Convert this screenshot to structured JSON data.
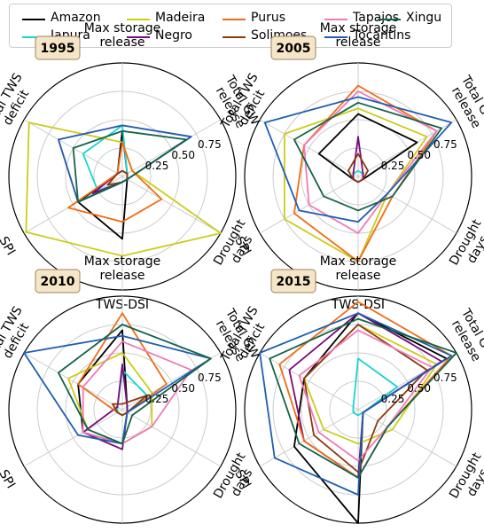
{
  "legend": {
    "entries": [
      {
        "name": "Amazon",
        "color": "#000000"
      },
      {
        "name": "Japura",
        "color": "#17d4d4"
      },
      {
        "name": "Madeira",
        "color": "#cccc1a"
      },
      {
        "name": "Negro",
        "color": "#7a0a7a"
      },
      {
        "name": "Purus",
        "color": "#f06c14"
      },
      {
        "name": "Solimoes",
        "color": "#8b3a0f"
      },
      {
        "name": "Tapajos",
        "color": "#f07ab8"
      },
      {
        "name": "Tocantins",
        "color": "#1f5fb0"
      },
      {
        "name": "Xingu",
        "color": "#14634a"
      }
    ]
  },
  "chart_data": [
    {
      "type": "radar",
      "title": "1995",
      "axes": [
        "Max storage\nrelease",
        "Total GW\nrelease",
        "Drought\ndays",
        "TWS-DSI",
        "SPI",
        "Total TWS\ndeficit"
      ],
      "rticks": [
        0.25,
        0.5,
        0.75
      ],
      "rtick_labels": [
        "0.25",
        "0.50",
        "0.75"
      ],
      "rlim": [
        0,
        1
      ],
      "grid": true,
      "series": [
        {
          "name": "Amazon",
          "values": [
            0.4,
            0.05,
            0.05,
            0.55,
            0.45,
            0.05
          ]
        },
        {
          "name": "Japura",
          "values": [
            0.45,
            0.05,
            0.05,
            0.05,
            0.25,
            0.4
          ]
        },
        {
          "name": "Madeira",
          "values": [
            0.3,
            0.1,
            1.0,
            0.7,
            0.98,
            0.95
          ]
        },
        {
          "name": "Negro",
          "values": [
            0.05,
            0.05,
            0.05,
            0.05,
            0.3,
            0.05
          ]
        },
        {
          "name": "Purus",
          "values": [
            0.3,
            0.1,
            0.4,
            0.4,
            0.55,
            0.05
          ]
        },
        {
          "name": "Solimoes",
          "values": [
            0.05,
            0.05,
            0.05,
            0.05,
            0.15,
            0.05
          ]
        },
        {
          "name": "Tapajos",
          "values": [
            0.45,
            0.7,
            0.05,
            0.05,
            0.45,
            0.65
          ]
        },
        {
          "name": "Tocantins",
          "values": [
            0.45,
            0.7,
            0.05,
            0.05,
            0.45,
            0.65
          ]
        },
        {
          "name": "Xingu",
          "values": [
            0.4,
            0.65,
            0.05,
            0.05,
            0.45,
            0.5
          ]
        }
      ]
    },
    {
      "type": "radar",
      "title": "2005",
      "axes": [
        "Max storage\nrelease",
        "Total GW\nrelease",
        "Drought\ndays",
        "TWS-DSI",
        "SPI",
        "Total TWS\ndeficit"
      ],
      "rticks": [
        0.25,
        0.5,
        0.75
      ],
      "rtick_labels": [
        "0.25",
        "0.50",
        "0.75"
      ],
      "rlim": [
        0,
        1
      ],
      "grid": true,
      "series": [
        {
          "name": "Amazon",
          "values": [
            0.55,
            0.6,
            0.05,
            0.05,
            0.05,
            0.4
          ]
        },
        {
          "name": "Japura",
          "values": [
            0.05,
            0.05,
            0.05,
            0.05,
            0.05,
            0.05
          ]
        },
        {
          "name": "Madeira",
          "values": [
            0.6,
            0.7,
            0.3,
            0.75,
            0.75,
            0.75
          ]
        },
        {
          "name": "Negro",
          "values": [
            0.35,
            0.05,
            0.05,
            0.05,
            0.05,
            0.05
          ]
        },
        {
          "name": "Purus",
          "values": [
            0.8,
            0.8,
            0.35,
            0.75,
            0.65,
            0.55
          ]
        },
        {
          "name": "Solimoes",
          "values": [
            0.2,
            0.1,
            0.05,
            0.05,
            0.05,
            0.1
          ]
        },
        {
          "name": "Tapajos",
          "values": [
            0.75,
            0.8,
            0.3,
            0.5,
            0.5,
            0.55
          ]
        },
        {
          "name": "Tocantins",
          "values": [
            0.7,
            0.95,
            0.3,
            0.4,
            0.6,
            0.95
          ]
        },
        {
          "name": "Xingu",
          "values": [
            0.65,
            0.85,
            0.35,
            0.3,
            0.35,
            0.65
          ]
        }
      ]
    },
    {
      "type": "radar",
      "title": "2010",
      "axes": [
        "Max storage\nrelease",
        "Total GW\nrelease",
        "Drought\ndays",
        "TWS-DSI",
        "SPI",
        "Total TWS\ndeficit"
      ],
      "rticks": [
        0.25,
        0.5,
        0.75
      ],
      "rtick_labels": [
        "0.25",
        "0.50",
        "0.75"
      ],
      "rlim": [
        0,
        1
      ],
      "grid": true,
      "series": [
        {
          "name": "Amazon",
          "values": [
            0.7,
            0.05,
            0.05,
            0.3,
            0.4,
            0.45
          ]
        },
        {
          "name": "Japura",
          "values": [
            0.35,
            0.25,
            0.05,
            0.05,
            0.05,
            0.05
          ]
        },
        {
          "name": "Madeira",
          "values": [
            0.5,
            0.3,
            0.3,
            0.3,
            0.35,
            0.55
          ]
        },
        {
          "name": "Negro",
          "values": [
            0.4,
            0.05,
            0.05,
            0.35,
            0.4,
            0.05
          ]
        },
        {
          "name": "Purus",
          "values": [
            0.85,
            0.45,
            0.05,
            0.05,
            0.05,
            0.45
          ]
        },
        {
          "name": "Solimoes",
          "values": [
            0.05,
            0.25,
            0.05,
            0.05,
            0.05,
            0.1
          ]
        },
        {
          "name": "Tapajos",
          "values": [
            0.6,
            0.7,
            0.3,
            0.3,
            0.4,
            0.4
          ]
        },
        {
          "name": "Tocantins",
          "values": [
            0.65,
            0.9,
            0.05,
            0.3,
            0.45,
            1.0
          ]
        },
        {
          "name": "Xingu",
          "values": [
            0.75,
            0.9,
            0.1,
            0.3,
            0.35,
            0.65
          ]
        }
      ]
    },
    {
      "type": "radar",
      "title": "2015",
      "axes": [
        "Max storage\nrelease",
        "Total GW\nrelease",
        "Drought\ndays",
        "TWS-DSI",
        "SPI",
        "Total TWS\ndeficit"
      ],
      "rticks": [
        0.25,
        0.5,
        0.75
      ],
      "rtick_labels": [
        "0.25",
        "0.50",
        "0.75"
      ],
      "rlim": [
        0,
        1
      ],
      "grid": true,
      "series": [
        {
          "name": "Amazon",
          "values": [
            0.85,
            0.9,
            0.05,
            1.0,
            0.65,
            0.55
          ]
        },
        {
          "name": "Japura",
          "values": [
            0.45,
            0.4,
            0.05,
            0.05,
            0.05,
            0.05
          ]
        },
        {
          "name": "Madeira",
          "values": [
            0.75,
            0.8,
            0.35,
            0.3,
            0.35,
            0.55
          ]
        },
        {
          "name": "Negro",
          "values": [
            0.85,
            0.85,
            0.05,
            0.6,
            0.55,
            0.7
          ]
        },
        {
          "name": "Purus",
          "values": [
            0.95,
            0.95,
            0.3,
            0.6,
            0.55,
            0.8
          ]
        },
        {
          "name": "Solimoes",
          "values": [
            0.75,
            0.7,
            0.2,
            0.55,
            0.45,
            0.55
          ]
        },
        {
          "name": "Tapajos",
          "values": [
            0.7,
            0.75,
            0.3,
            0.45,
            0.4,
            0.6
          ]
        },
        {
          "name": "Tocantins",
          "values": [
            0.85,
            0.95,
            0.05,
            0.75,
            0.85,
            1.0
          ]
        },
        {
          "name": "Xingu",
          "values": [
            0.8,
            1.0,
            0.3,
            0.6,
            0.6,
            0.9
          ]
        }
      ]
    }
  ]
}
